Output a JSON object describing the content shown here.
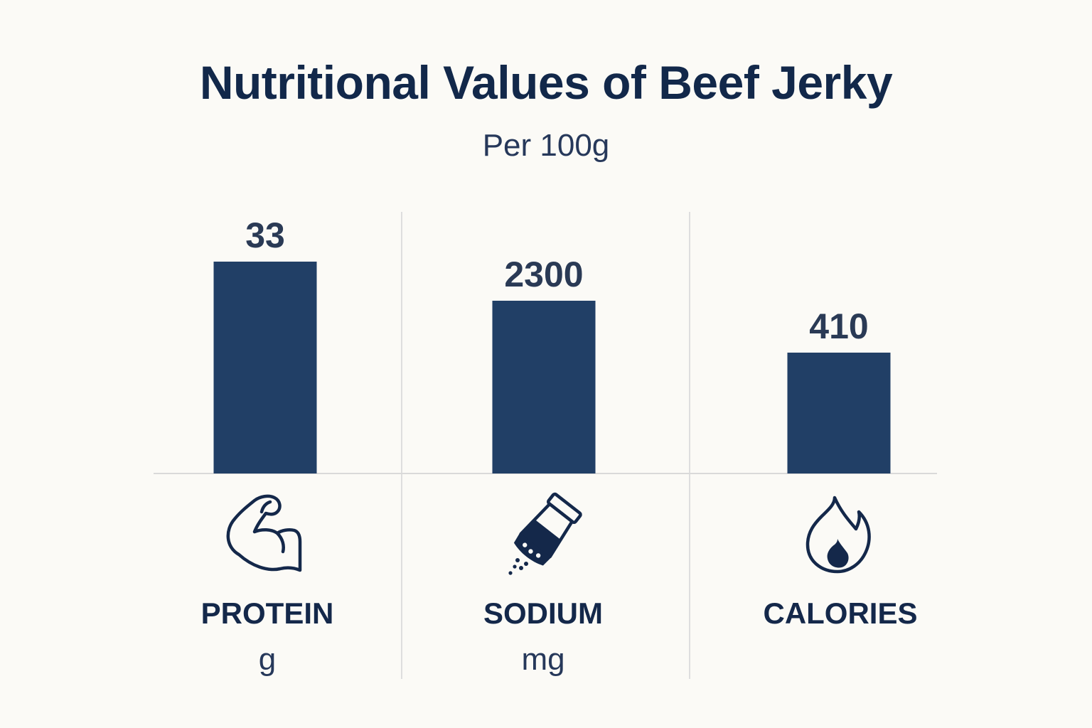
{
  "chart_data": {
    "type": "bar",
    "title": "Nutritional Values of Beef Jerky",
    "subtitle": "Per 100g",
    "categories": [
      "PROTEIN",
      "SODIUM",
      "CALORIES"
    ],
    "units": [
      "g",
      "mg",
      ""
    ],
    "values": [
      33,
      2300,
      410
    ],
    "value_labels": [
      "33",
      "2300",
      "410"
    ],
    "bar_fill_fractions": [
      0.805,
      0.656,
      0.459
    ],
    "icons": [
      "flexed-arm-icon",
      "salt-shaker-icon",
      "flame-icon"
    ],
    "grid": false,
    "legend": "none",
    "colors": {
      "bar": "#213f66",
      "text": "#14284a",
      "background": "#fbfaf6",
      "lines": "#d9d9d9"
    }
  }
}
